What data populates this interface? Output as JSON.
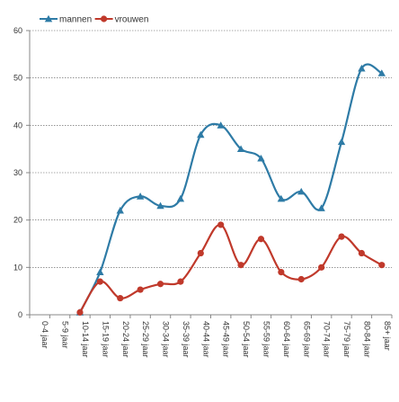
{
  "chart_data": {
    "type": "line",
    "categories": [
      "0-4 jaar",
      "5-9 jaar",
      "10-14 jaar",
      "15-19 jaar",
      "20-24 jaar",
      "25-29 jaar",
      "30-34 jaar",
      "35-39 jaar",
      "40-44 jaar",
      "45-49 jaar",
      "50-54 jaar",
      "55-59 jaar",
      "60-64 jaar",
      "65-69 jaar",
      "70-74 jaar",
      "75-79 jaar",
      "80-84 jaar",
      "85+ jaar"
    ],
    "series": [
      {
        "name": "mannen",
        "color": "#2e7ba6",
        "marker": "triangle",
        "values": [
          null,
          null,
          0.5,
          9,
          22,
          25,
          23,
          24.5,
          38,
          40,
          35,
          33,
          24.5,
          26,
          22.5,
          36.5,
          52,
          51
        ]
      },
      {
        "name": "vrouwen",
        "color": "#c0392b",
        "marker": "circle",
        "values": [
          null,
          null,
          0.5,
          7,
          3.5,
          5.3,
          6.5,
          7,
          13,
          19,
          10.5,
          16,
          9,
          7.5,
          10,
          16.5,
          13,
          10.5
        ]
      }
    ],
    "ylim": [
      0,
      60
    ],
    "yticks": [
      0,
      10,
      20,
      30,
      40,
      50,
      60
    ],
    "ylabel": "",
    "xlabel": "",
    "title": "",
    "grid": true,
    "legend_position": "top-left"
  }
}
